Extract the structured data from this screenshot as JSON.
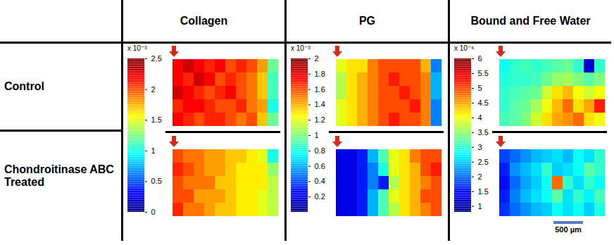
{
  "scale_bar": "500 µm",
  "chart_data": [
    {
      "type": "heatmap",
      "title": "Collagen",
      "colorbar": {
        "range": [
          0,
          2.5
        ],
        "ticks": [
          0,
          0.5,
          1,
          1.5,
          2,
          2.5
        ],
        "multiplier": "x 10⁻³"
      },
      "panels": [
        {
          "name": "Control",
          "cells": [
            [
              2.2,
              2.3,
              2.2,
              2.1,
              2.2,
              2.0,
              2.1,
              2.0,
              1.8,
              1.2
            ],
            [
              2.2,
              2.1,
              2.3,
              2.2,
              2.0,
              2.1,
              2.0,
              1.9,
              1.7,
              1.1
            ],
            [
              2.3,
              2.2,
              2.1,
              2.0,
              2.1,
              2.2,
              2.0,
              1.9,
              1.7,
              1.1
            ],
            [
              2.1,
              2.2,
              2.2,
              2.1,
              2.0,
              2.0,
              2.1,
              1.9,
              1.8,
              1.0
            ],
            [
              2.2,
              2.1,
              2.0,
              2.1,
              2.1,
              2.0,
              1.9,
              2.0,
              1.7,
              1.2
            ]
          ]
        },
        {
          "name": "Chondroitinase ABC Treated",
          "cells": [
            [
              2.0,
              1.9,
              1.9,
              1.8,
              1.8,
              1.7,
              1.7,
              1.6,
              1.5,
              1.0
            ],
            [
              2.1,
              2.0,
              1.9,
              1.8,
              1.8,
              1.7,
              1.6,
              1.6,
              1.6,
              1.3
            ],
            [
              2.0,
              1.9,
              1.9,
              1.9,
              1.7,
              1.7,
              1.6,
              1.6,
              1.6,
              1.4
            ],
            [
              2.0,
              2.0,
              1.8,
              1.8,
              1.8,
              1.7,
              1.6,
              1.6,
              1.5,
              1.4
            ],
            [
              2.1,
              1.9,
              1.9,
              1.8,
              1.7,
              1.7,
              1.6,
              1.6,
              1.5,
              1.4
            ]
          ]
        }
      ]
    },
    {
      "type": "heatmap",
      "title": "PG",
      "colorbar": {
        "range": [
          0,
          2
        ],
        "ticks": [
          0.2,
          0.4,
          0.6,
          0.8,
          1,
          1.2,
          1.4,
          1.6,
          1.8,
          2
        ],
        "multiplier": "x 10⁻³"
      },
      "panels": [
        {
          "name": "Control",
          "cells": [
            [
              1.2,
              1.3,
              1.3,
              1.5,
              1.6,
              1.6,
              1.6,
              1.6,
              1.4,
              0.5
            ],
            [
              1.1,
              1.3,
              1.4,
              1.5,
              1.6,
              1.7,
              1.6,
              1.6,
              1.5,
              0.6
            ],
            [
              1.1,
              1.3,
              1.4,
              1.5,
              1.6,
              1.6,
              1.7,
              1.6,
              1.5,
              0.6
            ],
            [
              1.2,
              1.3,
              1.4,
              1.5,
              1.6,
              1.6,
              1.6,
              1.7,
              1.5,
              0.5
            ],
            [
              1.2,
              1.3,
              1.4,
              1.5,
              1.6,
              1.7,
              1.6,
              1.6,
              1.5,
              0.5
            ]
          ]
        },
        {
          "name": "Chondroitinase ABC Treated",
          "cells": [
            [
              0.2,
              0.2,
              0.3,
              0.6,
              0.9,
              1.2,
              1.3,
              1.5,
              1.6,
              1.6
            ],
            [
              0.2,
              0.2,
              0.3,
              0.5,
              0.8,
              1.2,
              1.3,
              1.4,
              1.6,
              1.7
            ],
            [
              0.2,
              0.2,
              0.3,
              0.5,
              0.3,
              1.1,
              1.3,
              1.4,
              1.5,
              1.6
            ],
            [
              0.2,
              0.2,
              0.3,
              0.6,
              0.9,
              1.2,
              1.3,
              1.4,
              1.6,
              1.6
            ],
            [
              0.2,
              0.2,
              0.3,
              0.6,
              0.9,
              1.1,
              1.3,
              1.4,
              1.5,
              1.6
            ]
          ]
        }
      ]
    },
    {
      "type": "heatmap",
      "title": "Bound and Free Water",
      "colorbar": {
        "range": [
          0.8,
          6
        ],
        "ticks": [
          1,
          1.5,
          2,
          2.5,
          3,
          3.5,
          4,
          4.5,
          5,
          5.5,
          6
        ],
        "multiplier": "x 10⁻⁶"
      },
      "panels": [
        {
          "name": "Control",
          "cells": [
            [
              2.8,
              3.0,
              3.1,
              3.0,
              3.1,
              3.2,
              3.3,
              3.0,
              1.2,
              3.0
            ],
            [
              2.9,
              3.0,
              3.0,
              3.1,
              3.3,
              3.5,
              3.6,
              3.4,
              3.2,
              3.4
            ],
            [
              3.0,
              3.1,
              3.2,
              3.3,
              3.8,
              4.2,
              4.4,
              4.0,
              3.8,
              4.0
            ],
            [
              3.0,
              3.2,
              3.3,
              3.6,
              4.0,
              4.4,
              4.8,
              4.2,
              4.5,
              5.2
            ],
            [
              3.1,
              3.2,
              3.4,
              3.8,
              4.2,
              4.5,
              4.6,
              4.8,
              4.2,
              4.0
            ]
          ]
        },
        {
          "name": "Chondroitinase ABC Treated",
          "cells": [
            [
              1.8,
              2.0,
              2.2,
              2.4,
              2.5,
              2.6,
              2.4,
              2.8,
              2.6,
              3.0
            ],
            [
              1.6,
              2.2,
              2.4,
              2.6,
              3.0,
              2.5,
              2.6,
              2.8,
              3.2,
              3.0
            ],
            [
              1.5,
              2.0,
              2.3,
              2.5,
              2.8,
              4.8,
              3.0,
              2.6,
              3.0,
              2.8
            ],
            [
              1.6,
              2.1,
              2.4,
              2.6,
              2.8,
              3.2,
              2.6,
              3.0,
              2.7,
              3.1
            ],
            [
              1.7,
              2.0,
              2.2,
              2.4,
              2.5,
              2.8,
              2.6,
              2.8,
              2.5,
              2.9
            ]
          ]
        }
      ]
    }
  ]
}
